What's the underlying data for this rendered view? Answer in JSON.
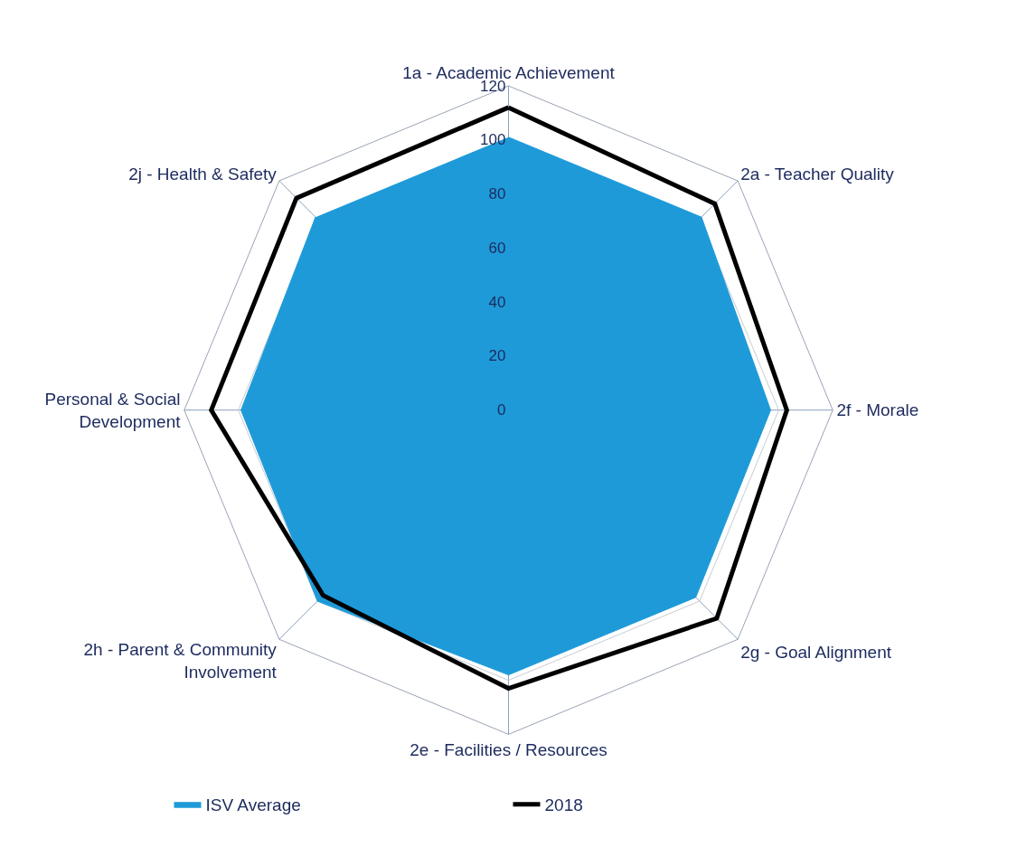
{
  "chart_data": {
    "type": "radar",
    "categories": [
      "1a - Academic Achievement",
      "2a - Teacher Quality",
      "2f - Morale",
      "2g - Goal Alignment",
      "2e - Facilities / Resources",
      "2h - Parent & Community Involvement",
      "Personal & Social Development",
      "2j - Health & Safety"
    ],
    "series": [
      {
        "name": "ISV Average",
        "color": "#1e9ad8",
        "values": [
          101,
          101,
          97,
          98,
          98,
          100,
          99,
          101
        ]
      },
      {
        "name": "2018",
        "color": "#000000",
        "values": [
          112,
          108,
          103,
          109,
          103,
          97,
          110,
          111
        ]
      }
    ],
    "ylim": [
      0,
      120
    ],
    "yticks": [
      0,
      20,
      40,
      60,
      80,
      100,
      120
    ],
    "grid": true,
    "legend": "bottom"
  }
}
